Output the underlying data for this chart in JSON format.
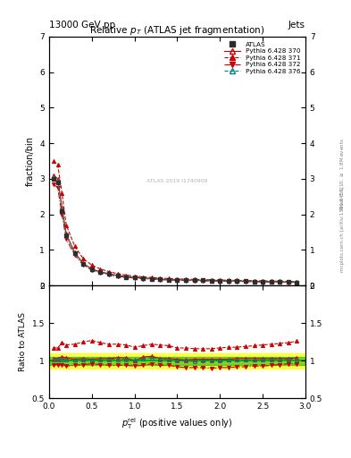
{
  "title": "Relative $p_T$ (ATLAS jet fragmentation)",
  "header_left": "13000 GeV pp",
  "header_right": "Jets",
  "ylabel_main": "fraction/bin",
  "ylabel_ratio": "Ratio to ATLAS",
  "watermark": "ATLAS 2019 I1740909",
  "legend_entries": [
    "ATLAS",
    "Pythia 6.428 370",
    "Pythia 6.428 371",
    "Pythia 6.428 372",
    "Pythia 6.428 376"
  ],
  "main_xlim": [
    0,
    3
  ],
  "main_ylim": [
    0,
    7
  ],
  "ratio_ylim": [
    0.5,
    2.0
  ],
  "x_data": [
    0.05,
    0.1,
    0.15,
    0.2,
    0.3,
    0.4,
    0.5,
    0.6,
    0.7,
    0.8,
    0.9,
    1.0,
    1.1,
    1.2,
    1.3,
    1.4,
    1.5,
    1.6,
    1.7,
    1.8,
    1.9,
    2.0,
    2.1,
    2.2,
    2.3,
    2.4,
    2.5,
    2.6,
    2.7,
    2.8,
    2.9
  ],
  "atlas_y": [
    3.0,
    2.9,
    2.1,
    1.4,
    0.9,
    0.6,
    0.45,
    0.37,
    0.32,
    0.27,
    0.24,
    0.22,
    0.2,
    0.18,
    0.17,
    0.16,
    0.155,
    0.15,
    0.145,
    0.14,
    0.135,
    0.13,
    0.125,
    0.12,
    0.115,
    0.11,
    0.105,
    0.1,
    0.095,
    0.09,
    0.085
  ],
  "py370_y": [
    3.1,
    3.0,
    2.2,
    1.45,
    0.92,
    0.62,
    0.46,
    0.38,
    0.33,
    0.28,
    0.25,
    0.22,
    0.21,
    0.19,
    0.175,
    0.165,
    0.158,
    0.152,
    0.148,
    0.143,
    0.138,
    0.133,
    0.128,
    0.123,
    0.118,
    0.113,
    0.108,
    0.103,
    0.098,
    0.093,
    0.088
  ],
  "py371_y": [
    3.5,
    3.4,
    2.6,
    1.7,
    1.1,
    0.75,
    0.57,
    0.46,
    0.39,
    0.33,
    0.29,
    0.26,
    0.24,
    0.22,
    0.205,
    0.192,
    0.182,
    0.175,
    0.168,
    0.163,
    0.157,
    0.152,
    0.147,
    0.142,
    0.137,
    0.132,
    0.127,
    0.122,
    0.117,
    0.112,
    0.107
  ],
  "py372_y": [
    2.85,
    2.75,
    2.0,
    1.3,
    0.85,
    0.57,
    0.43,
    0.35,
    0.3,
    0.255,
    0.225,
    0.205,
    0.188,
    0.172,
    0.16,
    0.15,
    0.143,
    0.137,
    0.132,
    0.127,
    0.122,
    0.118,
    0.114,
    0.11,
    0.106,
    0.102,
    0.098,
    0.094,
    0.09,
    0.086,
    0.082
  ],
  "py376_y": [
    3.05,
    2.95,
    2.15,
    1.42,
    0.91,
    0.61,
    0.455,
    0.375,
    0.325,
    0.275,
    0.245,
    0.222,
    0.205,
    0.188,
    0.174,
    0.163,
    0.155,
    0.149,
    0.144,
    0.14,
    0.135,
    0.13,
    0.126,
    0.121,
    0.116,
    0.111,
    0.107,
    0.102,
    0.097,
    0.092,
    0.087
  ],
  "ratio370": [
    1.03,
    1.03,
    1.05,
    1.04,
    1.02,
    1.03,
    1.02,
    1.03,
    1.03,
    1.04,
    1.04,
    1.0,
    1.05,
    1.06,
    1.03,
    1.03,
    1.02,
    1.01,
    1.02,
    1.02,
    1.02,
    1.02,
    1.02,
    1.03,
    1.03,
    1.03,
    1.03,
    1.03,
    1.03,
    1.03,
    1.04
  ],
  "ratio371": [
    1.17,
    1.17,
    1.24,
    1.21,
    1.22,
    1.25,
    1.27,
    1.24,
    1.22,
    1.22,
    1.21,
    1.18,
    1.2,
    1.22,
    1.21,
    1.2,
    1.17,
    1.17,
    1.16,
    1.16,
    1.16,
    1.17,
    1.18,
    1.18,
    1.19,
    1.2,
    1.21,
    1.22,
    1.23,
    1.24,
    1.26
  ],
  "ratio372": [
    0.95,
    0.95,
    0.95,
    0.93,
    0.94,
    0.95,
    0.96,
    0.95,
    0.94,
    0.94,
    0.94,
    0.93,
    0.94,
    0.96,
    0.94,
    0.94,
    0.92,
    0.91,
    0.91,
    0.91,
    0.9,
    0.91,
    0.91,
    0.92,
    0.92,
    0.93,
    0.93,
    0.94,
    0.95,
    0.96,
    0.96
  ],
  "ratio376": [
    1.02,
    1.02,
    1.02,
    1.01,
    1.01,
    1.02,
    1.01,
    1.01,
    1.02,
    1.02,
    1.02,
    1.01,
    1.03,
    1.04,
    1.02,
    1.02,
    1.0,
    1.0,
    0.99,
    1.0,
    1.0,
    1.0,
    1.01,
    1.01,
    1.01,
    1.01,
    1.02,
    1.02,
    1.02,
    1.02,
    1.02
  ],
  "color_atlas": "#2d2d2d",
  "color_370": "#cc0000",
  "color_371": "#cc0000",
  "color_372": "#cc0000",
  "color_376": "#008080",
  "band_green": "#00aa00",
  "band_yellow": "#ffff00",
  "background": "#ffffff"
}
